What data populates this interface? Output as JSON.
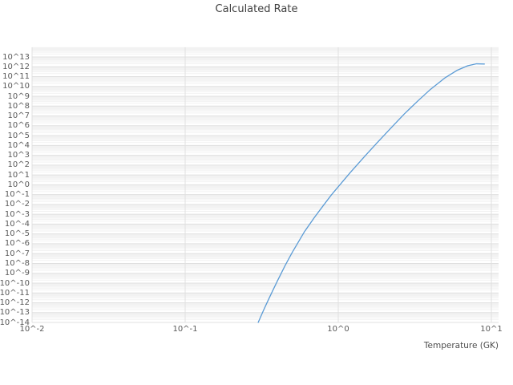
{
  "chart_data": {
    "type": "line",
    "title": "Calculated Rate",
    "xlabel": "Temperature (GK)",
    "ylabel": "",
    "x_scale": "log",
    "y_scale": "log",
    "xlim": [
      0.01,
      11.5
    ],
    "ylim": [
      1e-14,
      100000000000000.0
    ],
    "grid": true,
    "legend": false,
    "colors": {
      "line": "#5b9bd5",
      "grid_major": "#e0e0e0",
      "grid_minor": "#f2f2f2",
      "tick_text": "#595959",
      "title_text": "#3f3f3f",
      "axis_label_text": "#4d4d4d"
    },
    "x_ticks": [
      {
        "label": "10^-2",
        "value": 0.01
      },
      {
        "label": "10^-1",
        "value": 0.1
      },
      {
        "label": "10^0",
        "value": 1
      },
      {
        "label": "10^1",
        "value": 10
      }
    ],
    "y_ticks": [
      {
        "label": "10^13",
        "exp": 13
      },
      {
        "label": "10^12",
        "exp": 12
      },
      {
        "label": "10^11",
        "exp": 11
      },
      {
        "label": "10^10",
        "exp": 10
      },
      {
        "label": "10^9",
        "exp": 9
      },
      {
        "label": "10^8",
        "exp": 8
      },
      {
        "label": "10^7",
        "exp": 7
      },
      {
        "label": "10^6",
        "exp": 6
      },
      {
        "label": "10^5",
        "exp": 5
      },
      {
        "label": "10^4",
        "exp": 4
      },
      {
        "label": "10^3",
        "exp": 3
      },
      {
        "label": "10^2",
        "exp": 2
      },
      {
        "label": "10^1",
        "exp": 1
      },
      {
        "label": "10^0",
        "exp": 0
      },
      {
        "label": "10^-1",
        "exp": -1
      },
      {
        "label": "10^-2",
        "exp": -2
      },
      {
        "label": "10^-3",
        "exp": -3
      },
      {
        "label": "10^-4",
        "exp": -4
      },
      {
        "label": "10^-5",
        "exp": -5
      },
      {
        "label": "10^-6",
        "exp": -6
      },
      {
        "label": "10^-7",
        "exp": -7
      },
      {
        "label": "10^-8",
        "exp": -8
      },
      {
        "label": "10^-9",
        "exp": -9
      },
      {
        "label": "10^-10",
        "exp": -10
      },
      {
        "label": "10^-11",
        "exp": -11
      },
      {
        "label": "10^-12",
        "exp": -12
      },
      {
        "label": "10^-13",
        "exp": -13
      },
      {
        "label": "10^-14",
        "exp": -14
      }
    ],
    "series": [
      {
        "name": "Calculated Rate",
        "x": [
          0.3,
          0.32,
          0.34,
          0.37,
          0.4,
          0.45,
          0.5,
          0.55,
          0.6,
          0.7,
          0.8,
          0.9,
          1.0,
          1.2,
          1.5,
          1.8,
          2.2,
          2.7,
          3.3,
          4.0,
          5.0,
          6.0,
          7.0,
          8.0,
          9.0
        ],
        "y": [
          1e-14,
          1e-13,
          8e-13,
          1.3e-11,
          1.6e-10,
          6.3e-09,
          1.3e-07,
          1.6e-06,
          1.6e-05,
          0.0005,
          0.008,
          0.09,
          0.63,
          18.0,
          890.0,
          20000.0,
          560000.0,
          16000000.0,
          320000000.0,
          5000000000.0,
          79000000000.0,
          450000000000.0,
          1260000000000.0,
          2000000000000.0,
          1900000000000.0
        ]
      }
    ]
  }
}
